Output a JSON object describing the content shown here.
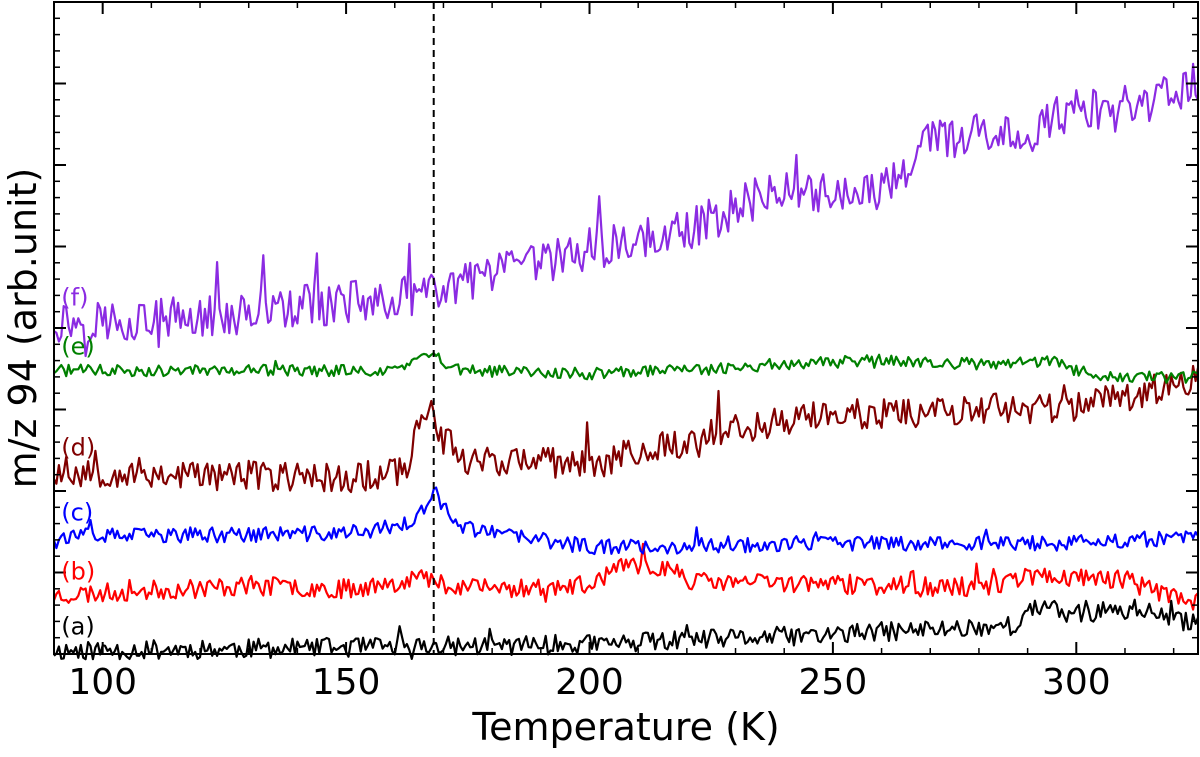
{
  "chart_data": {
    "type": "line",
    "xlabel": "Temperature (K)",
    "ylabel": "m/z 94 (arb.unit)",
    "xlim": [
      90,
      325
    ],
    "ylim": [
      0,
      100
    ],
    "x_ticks": [
      100,
      150,
      200,
      250,
      300
    ],
    "grid": false,
    "annotations": [
      {
        "type": "vertical-dashed-line",
        "x": 168
      }
    ],
    "series": [
      {
        "label": "(a)",
        "color": "#000000",
        "noise": 1.5,
        "seed": 11,
        "points": [
          [
            90,
            0.5
          ],
          [
            150,
            1.0
          ],
          [
            200,
            1.5
          ],
          [
            250,
            3.0
          ],
          [
            289,
            4.5
          ],
          [
            290,
            7.5
          ],
          [
            300,
            6.0
          ],
          [
            313,
            7.0
          ],
          [
            320,
            5.0
          ],
          [
            325,
            5.0
          ]
        ]
      },
      {
        "label": "(b)",
        "color": "#ff0000",
        "noise": 1.5,
        "seed": 23,
        "points": [
          [
            90,
            9.0
          ],
          [
            130,
            10.5
          ],
          [
            150,
            10.0
          ],
          [
            160,
            11.0
          ],
          [
            165,
            12.0
          ],
          [
            168,
            11.0
          ],
          [
            180,
            10.0
          ],
          [
            200,
            10.5
          ],
          [
            205,
            13.0
          ],
          [
            215,
            13.5
          ],
          [
            222,
            11.0
          ],
          [
            240,
            11.0
          ],
          [
            280,
            10.0
          ],
          [
            290,
            12.0
          ],
          [
            310,
            11.5
          ],
          [
            315,
            10.0
          ],
          [
            320,
            9.0
          ],
          [
            325,
            8.0
          ]
        ]
      },
      {
        "label": "(c)",
        "color": "#0000ff",
        "noise": 1.2,
        "seed": 37,
        "points": [
          [
            90,
            18.0
          ],
          [
            150,
            18.5
          ],
          [
            160,
            19.5
          ],
          [
            165,
            21.0
          ],
          [
            168,
            25.0
          ],
          [
            172,
            20.0
          ],
          [
            180,
            18.5
          ],
          [
            200,
            16.5
          ],
          [
            215,
            16.5
          ],
          [
            250,
            17.0
          ],
          [
            300,
            17.0
          ],
          [
            325,
            18.0
          ]
        ]
      },
      {
        "label": "(d)",
        "color": "#800000",
        "noise": 2.4,
        "seed": 53,
        "points": [
          [
            90,
            28.0
          ],
          [
            150,
            27.0
          ],
          [
            162,
            28.0
          ],
          [
            164,
            33.0
          ],
          [
            166,
            38.0
          ],
          [
            168,
            37.0
          ],
          [
            170,
            33.0
          ],
          [
            175,
            30.0
          ],
          [
            200,
            29.0
          ],
          [
            210,
            31.0
          ],
          [
            240,
            36.0
          ],
          [
            260,
            37.0
          ],
          [
            300,
            38.0
          ],
          [
            325,
            42.0
          ]
        ]
      },
      {
        "label": "(e)",
        "color": "#008000",
        "noise": 0.9,
        "seed": 71,
        "points": [
          [
            90,
            43.5
          ],
          [
            160,
            43.5
          ],
          [
            168,
            46.0
          ],
          [
            172,
            43.5
          ],
          [
            200,
            43.0
          ],
          [
            220,
            43.5
          ],
          [
            240,
            44.5
          ],
          [
            260,
            45.0
          ],
          [
            280,
            44.5
          ],
          [
            295,
            45.0
          ],
          [
            300,
            43.5
          ],
          [
            305,
            42.5
          ],
          [
            325,
            42.5
          ]
        ]
      },
      {
        "label": "(f)",
        "color": "#8b2be2",
        "noise": 3.3,
        "seed": 97,
        "points": [
          [
            90,
            51.0
          ],
          [
            120,
            51.5
          ],
          [
            150,
            54.0
          ],
          [
            168,
            55.0
          ],
          [
            175,
            57.0
          ],
          [
            200,
            62.0
          ],
          [
            220,
            65.0
          ],
          [
            240,
            72.0
          ],
          [
            255,
            70.0
          ],
          [
            262,
            72.0
          ],
          [
            270,
            79.0
          ],
          [
            290,
            80.0
          ],
          [
            300,
            84.0
          ],
          [
            310,
            82.0
          ],
          [
            325,
            88.0
          ]
        ]
      }
    ]
  }
}
